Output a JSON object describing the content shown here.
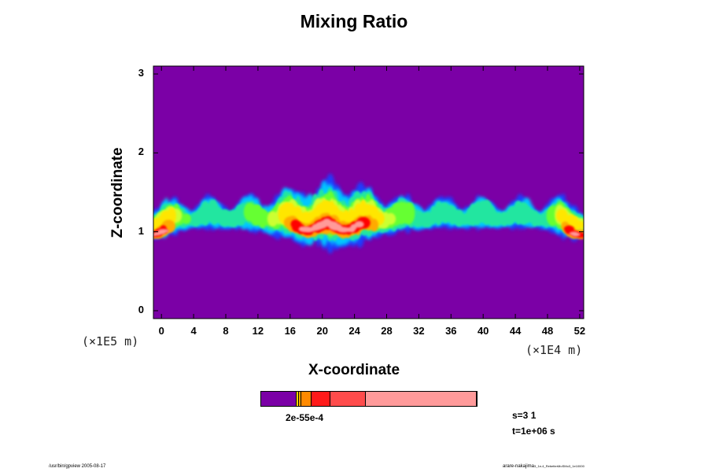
{
  "chart_data": {
    "type": "heatmap",
    "title": "Mixing Ratio",
    "xlabel": "X-coordinate",
    "ylabel": "Z-coordinate",
    "x_unit": "(×1E4 m)",
    "y_unit": "(×1E5 m)",
    "xlim": [
      -1,
      52.5
    ],
    "ylim": [
      -0.1,
      3.1
    ],
    "x_ticks": [
      "0",
      "4",
      "8",
      "12",
      "16",
      "20",
      "24",
      "28",
      "32",
      "36",
      "40",
      "44",
      "48",
      "52"
    ],
    "x_tick_values": [
      0,
      4,
      8,
      12,
      16,
      20,
      24,
      28,
      32,
      36,
      40,
      44,
      48,
      52
    ],
    "y_ticks": [
      "3",
      "2",
      "1",
      "0"
    ],
    "y_tick_values": [
      3,
      2,
      1,
      0
    ],
    "background_color": "#7b00a6",
    "level_colors": [
      "#7b00a6",
      "#1a3cff",
      "#00c8ff",
      "#22e6a0",
      "#66ff33",
      "#ccff33",
      "#ffe600",
      "#ffaa00",
      "#ff5000",
      "#ff0000",
      "#ff9a9a",
      "#ffe0e0"
    ],
    "colorbar": {
      "segments": [
        {
          "color": "#7b00a6",
          "fraction": 0.165
        },
        {
          "color": "#ffd400",
          "fraction": 0.01
        },
        {
          "color": "#ffaa00",
          "fraction": 0.01
        },
        {
          "color": "#ff8a00",
          "fraction": 0.05
        },
        {
          "color": "#ff1a1a",
          "fraction": 0.085
        },
        {
          "color": "#ff4c4c",
          "fraction": 0.165
        },
        {
          "color": "#ff9a9a",
          "fraction": 0.515
        }
      ],
      "label": "2e-55e-4"
    },
    "annotations": {
      "s": "s=3 1",
      "t": "t=1e+06 s"
    }
  },
  "footer": {
    "left": "/usr/bin/gpview 2005-08-17",
    "right": "arare-nakajima",
    "right_small": "3_1e-4_RebetterMoSMo3_1e10000"
  }
}
